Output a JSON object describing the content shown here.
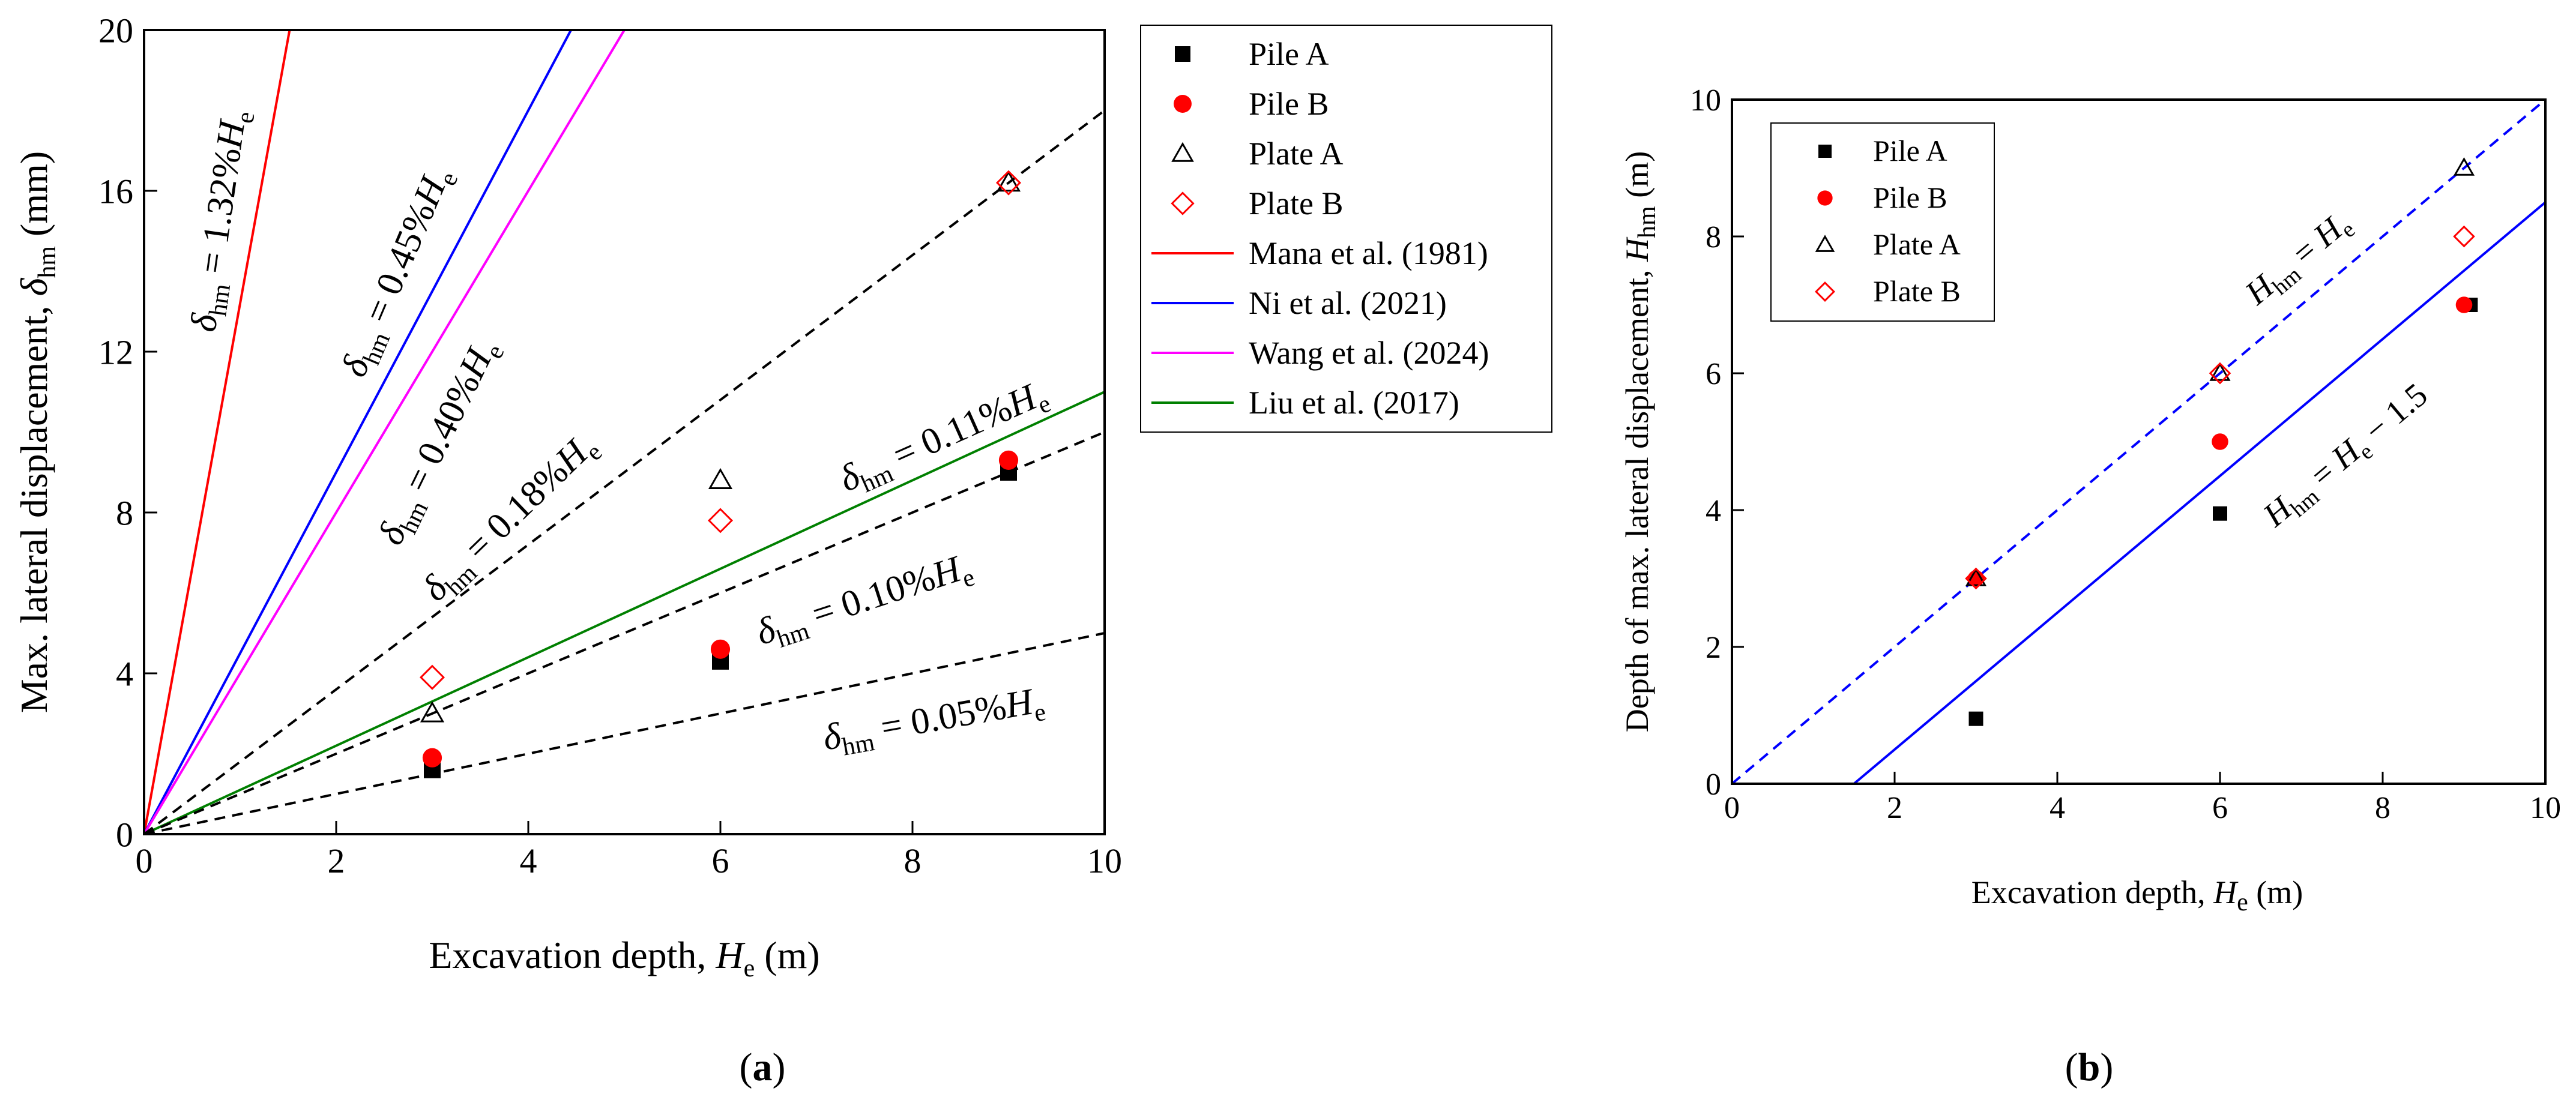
{
  "chart_data": [
    {
      "type": "scatter",
      "panel_label": "(a)",
      "xlabel": "Excavation depth, H_e (m)",
      "ylabel": "Max. lateral displacement, δ_hm (mm)",
      "xlim": [
        0,
        10
      ],
      "ylim": [
        0,
        20
      ],
      "xticks": [
        0,
        2,
        4,
        6,
        8,
        10
      ],
      "yticks": [
        0,
        4,
        8,
        12,
        16,
        20
      ],
      "grid": false,
      "legend_position": "outside-right",
      "series": [
        {
          "name": "Pile A",
          "marker": "filled-square",
          "color": "#000000",
          "x": [
            3,
            6,
            9
          ],
          "y": [
            1.6,
            4.3,
            9.0
          ]
        },
        {
          "name": "Pile B",
          "marker": "filled-circle",
          "color": "#ff0000",
          "x": [
            3,
            6,
            9
          ],
          "y": [
            1.9,
            4.6,
            9.3
          ]
        },
        {
          "name": "Plate A",
          "marker": "open-triangle",
          "color": "#000000",
          "x": [
            3,
            6,
            9
          ],
          "y": [
            3.0,
            8.8,
            16.2
          ]
        },
        {
          "name": "Plate B",
          "marker": "open-diamond",
          "color": "#ff0000",
          "x": [
            3,
            6,
            9
          ],
          "y": [
            3.9,
            7.8,
            16.2
          ]
        }
      ],
      "reference_lines": [
        {
          "name": "Mana et al. (1981)",
          "slope_mm_per_m": 13.2,
          "color": "#ff0000",
          "style": "solid",
          "in_legend": true
        },
        {
          "name": "Ni et al. (2021)",
          "slope_mm_per_m": 4.5,
          "color": "#0000ff",
          "style": "solid",
          "in_legend": true
        },
        {
          "name": "Wang et al. (2024)",
          "slope_mm_per_m": 4.0,
          "color": "#ff00ff",
          "style": "solid",
          "in_legend": true
        },
        {
          "name": "Liu et al. (2017)",
          "slope_mm_per_m": 1.1,
          "color": "#008000",
          "style": "solid",
          "in_legend": true
        },
        {
          "name": "0.18%",
          "slope_mm_per_m": 1.8,
          "color": "#000000",
          "style": "dashed",
          "in_legend": false
        },
        {
          "name": "0.10%",
          "slope_mm_per_m": 1.0,
          "color": "#000000",
          "style": "dashed",
          "in_legend": false
        },
        {
          "name": "0.05%",
          "slope_mm_per_m": 0.5,
          "color": "#000000",
          "style": "dashed",
          "in_legend": false
        }
      ],
      "annotations": [
        {
          "lhs": "δ",
          "lhs_sub": "hm",
          "rhs": " = 1.32%",
          "var": "H",
          "var_sub": "e"
        },
        {
          "lhs": "δ",
          "lhs_sub": "hm",
          "rhs": " = 0.45%",
          "var": "H",
          "var_sub": "e"
        },
        {
          "lhs": "δ",
          "lhs_sub": "hm",
          "rhs": " = 0.40%",
          "var": "H",
          "var_sub": "e"
        },
        {
          "lhs": "δ",
          "lhs_sub": "hm",
          "rhs": " = 0.18%",
          "var": "H",
          "var_sub": "e"
        },
        {
          "lhs": "δ",
          "lhs_sub": "hm",
          "rhs": " = 0.11%",
          "var": "H",
          "var_sub": "e"
        },
        {
          "lhs": "δ",
          "lhs_sub": "hm",
          "rhs": " = 0.10%",
          "var": "H",
          "var_sub": "e"
        },
        {
          "lhs": "δ",
          "lhs_sub": "hm",
          "rhs": " = 0.05%",
          "var": "H",
          "var_sub": "e"
        }
      ]
    },
    {
      "type": "scatter",
      "panel_label": "(b)",
      "xlabel": "Excavation depth, H_e (m)",
      "ylabel": "Depth of max. lateral displacement, H_hm (m)",
      "xlim": [
        0,
        10
      ],
      "ylim": [
        0,
        10
      ],
      "xticks": [
        0,
        2,
        4,
        6,
        8,
        10
      ],
      "yticks": [
        0,
        2,
        4,
        6,
        8,
        10
      ],
      "grid": false,
      "legend_position": "top-left",
      "series": [
        {
          "name": "Pile A",
          "marker": "filled-square",
          "color": "#000000",
          "x": [
            3,
            6,
            9
          ],
          "y": [
            0.95,
            3.95,
            7.0
          ]
        },
        {
          "name": "Pile B",
          "marker": "filled-circle",
          "color": "#ff0000",
          "x": [
            3,
            6,
            9
          ],
          "y": [
            3.0,
            5.0,
            7.0
          ]
        },
        {
          "name": "Plate A",
          "marker": "open-triangle",
          "color": "#000000",
          "x": [
            3,
            6,
            9
          ],
          "y": [
            3.0,
            6.0,
            9.0
          ]
        },
        {
          "name": "Plate B",
          "marker": "open-diamond",
          "color": "#ff0000",
          "x": [
            3,
            6,
            9
          ],
          "y": [
            3.0,
            6.0,
            8.0
          ]
        }
      ],
      "reference_lines": [
        {
          "name": "H_hm = H_e",
          "slope": 1.0,
          "intercept": 0.0,
          "color": "#0000ff",
          "style": "dashed"
        },
        {
          "name": "H_hm = H_e − 1.5",
          "slope": 1.0,
          "intercept": -1.5,
          "color": "#0000ff",
          "style": "solid"
        }
      ],
      "annotations": [
        {
          "lhs": "H",
          "lhs_sub": "hm",
          "rhs": " = ",
          "var": "H",
          "var_sub": "e",
          "tail": ""
        },
        {
          "lhs": "H",
          "lhs_sub": "hm",
          "rhs": " = ",
          "var": "H",
          "var_sub": "e",
          "tail": " − 1.5"
        }
      ]
    }
  ],
  "labels": {
    "a_xlabel": {
      "pre": "Excavation depth, ",
      "var": "H",
      "sub": "e",
      "post": " (m)"
    },
    "a_ylabel": {
      "pre": "Max. lateral displacement, ",
      "var": "δ",
      "sub": "hm",
      "post": " (mm)"
    },
    "b_xlabel": {
      "pre": "Excavation depth, ",
      "var": "H",
      "sub": "e",
      "post": " (m)"
    },
    "b_ylabel": {
      "pre": "Depth of max. lateral displacement, ",
      "var": "H",
      "sub": "hm",
      "post": " (m)"
    },
    "panel_a": {
      "open": "(",
      "letter": "a",
      "close": ")"
    },
    "panel_b": {
      "open": "(",
      "letter": "b",
      "close": ")"
    }
  }
}
